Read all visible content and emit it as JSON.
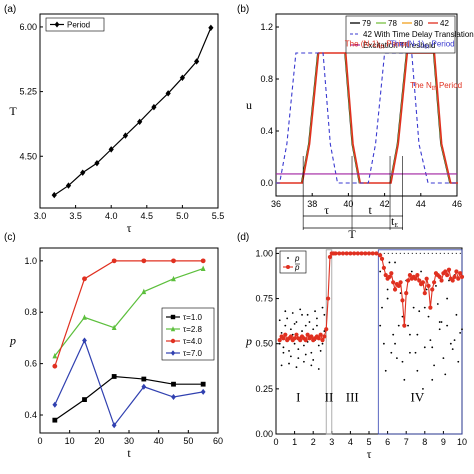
{
  "chart_data": [
    {
      "panel": "(a)",
      "type": "line",
      "xlabel": "τ",
      "ylabel": "T",
      "xlim": [
        3.0,
        5.5
      ],
      "ylim": [
        3.9,
        6.15
      ],
      "xticks": [
        "3.0",
        "3.5",
        "4.0",
        "4.5",
        "5.0",
        "5.5"
      ],
      "yticks": [
        "4.50",
        "5.25",
        "6.00"
      ],
      "legend": "top-left",
      "series": [
        {
          "name": "Period",
          "color": "#000000",
          "x": [
            3.2,
            3.4,
            3.6,
            3.8,
            4.0,
            4.2,
            4.4,
            4.6,
            4.8,
            5.0,
            5.2,
            5.4
          ],
          "y": [
            4.05,
            4.16,
            4.31,
            4.42,
            4.58,
            4.74,
            4.9,
            5.07,
            5.23,
            5.41,
            5.6,
            5.99
          ]
        }
      ]
    },
    {
      "panel": "(b)",
      "type": "line",
      "xlabel": "",
      "ylabel": "u",
      "xlim": [
        36,
        46
      ],
      "ylim": [
        -0.1,
        1.3
      ],
      "xticks": [
        "36",
        "38",
        "40",
        "42",
        "44",
        "46"
      ],
      "yticks": [
        "0.0",
        "0.4",
        "0.8",
        "1.2"
      ],
      "legend": "top-right",
      "series": [
        {
          "name": "79",
          "color": "#000000",
          "x": [
            36,
            37.4,
            37.8,
            38.3,
            39.8,
            40.2,
            40.6,
            42.3,
            42.7,
            43.2,
            44.7,
            45.1,
            45.6,
            46
          ],
          "y": [
            0.0,
            0.0,
            0.3,
            1.0,
            1.0,
            0.3,
            0.0,
            0.0,
            0.3,
            1.0,
            1.0,
            0.3,
            0.0,
            0.0
          ]
        },
        {
          "name": "78",
          "color": "#7ac143",
          "x": [
            36,
            37.4,
            37.8,
            38.3,
            39.8,
            40.2,
            40.6,
            42.3,
            42.7,
            43.2,
            44.7,
            45.1,
            45.6,
            46
          ],
          "y": [
            0.0,
            0.0,
            0.3,
            1.0,
            1.0,
            0.3,
            0.0,
            0.0,
            0.3,
            1.0,
            1.0,
            0.3,
            0.0,
            0.0
          ]
        },
        {
          "name": "80",
          "color": "#f0a020",
          "x": [
            36,
            37.4,
            37.8,
            38.3,
            39.8,
            40.2,
            40.6,
            42.3,
            42.7,
            43.2,
            44.7,
            45.1,
            45.6,
            46
          ],
          "y": [
            0.0,
            0.0,
            0.3,
            1.0,
            1.0,
            0.3,
            0.0,
            0.0,
            0.3,
            1.0,
            1.0,
            0.3,
            0.0,
            0.0
          ]
        },
        {
          "name": "42",
          "color": "#e03020",
          "x": [
            36,
            37.4,
            37.8,
            38.3,
            39.8,
            40.2,
            40.6,
            42.3,
            42.7,
            43.2,
            44.7,
            45.1,
            45.6,
            46
          ],
          "y": [
            0.0,
            0.0,
            0.3,
            1.0,
            1.0,
            0.3,
            0.0,
            0.0,
            0.3,
            1.0,
            1.0,
            0.3,
            0.0,
            0.0
          ]
        },
        {
          "name": "42 With Time Delay Translation",
          "color": "#3a3ad0",
          "dashed": true,
          "x": [
            36,
            36.2,
            36.6,
            37.1,
            38.6,
            39.0,
            39.4,
            41.1,
            41.5,
            42.0,
            43.5,
            43.9,
            44.4,
            46
          ],
          "y": [
            0.0,
            0.0,
            0.3,
            1.0,
            1.0,
            0.3,
            0.0,
            0.0,
            0.3,
            1.0,
            1.0,
            0.3,
            0.0,
            0.0
          ]
        },
        {
          "name": "Excitation Threshold",
          "color": "#a020a0",
          "x": [
            36,
            46
          ],
          "y": [
            0.07,
            0.07
          ]
        }
      ],
      "annotations": [
        {
          "text": "The (N-1)",
          "sub": "th",
          "tail": " Period",
          "color": "#e03020",
          "x": 39.8,
          "y": 1.05
        },
        {
          "text": "The (N-1)",
          "sub": "th",
          "tail": " Period",
          "color": "#3a3ad0",
          "x": 42.3,
          "y": 1.05
        },
        {
          "text": "The N",
          "sub": "th",
          "tail": " Period",
          "color": "#e03020",
          "x": 43.4,
          "y": 0.73
        }
      ],
      "markers": [
        "τ",
        "t",
        "t",
        "T"
      ],
      "marker_sub": "E"
    },
    {
      "panel": "(c)",
      "type": "line",
      "xlabel": "t",
      "ylabel": "p",
      "xlim": [
        0,
        60
      ],
      "ylim": [
        0.33,
        1.05
      ],
      "xticks": [
        "0",
        "10",
        "20",
        "30",
        "40",
        "50",
        "60"
      ],
      "yticks": [
        "0.4",
        "0.6",
        "0.8",
        "1.0"
      ],
      "legend": "right",
      "series": [
        {
          "name": "τ=1.0",
          "color": "#000000",
          "marker": "square",
          "x": [
            5,
            15,
            25,
            35,
            45,
            55
          ],
          "y": [
            0.38,
            0.46,
            0.55,
            0.54,
            0.52,
            0.52
          ]
        },
        {
          "name": "τ=2.8",
          "color": "#5cbf3c",
          "marker": "triangle",
          "x": [
            5,
            15,
            25,
            35,
            45,
            55
          ],
          "y": [
            0.63,
            0.78,
            0.74,
            0.88,
            0.93,
            0.97
          ]
        },
        {
          "name": "τ=4.0",
          "color": "#e03020",
          "marker": "circle",
          "x": [
            5,
            15,
            25,
            35,
            45,
            55
          ],
          "y": [
            0.59,
            0.93,
            1.0,
            1.0,
            1.0,
            1.0
          ]
        },
        {
          "name": "τ=7.0",
          "color": "#3040b0",
          "marker": "diamond",
          "x": [
            5,
            15,
            25,
            35,
            45,
            55
          ],
          "y": [
            0.44,
            0.69,
            0.36,
            0.51,
            0.47,
            0.49
          ]
        }
      ]
    },
    {
      "panel": "(d)",
      "type": "scatter",
      "xlabel": "τ",
      "ylabel": "p",
      "xlim": [
        0,
        10
      ],
      "ylim": [
        0,
        1.03
      ],
      "xticks": [
        "0",
        "1",
        "2",
        "3",
        "4",
        "5",
        "6",
        "7",
        "8",
        "9",
        "10"
      ],
      "yticks": [
        "0.00",
        "0.25",
        "0.50",
        "0.75",
        "1.00"
      ],
      "legend": "top-left",
      "regions": [
        {
          "label": "I",
          "x": 1.2
        },
        {
          "label": "II",
          "x": 2.85
        },
        {
          "label": "III",
          "x": 4.1
        },
        {
          "label": "IV",
          "x": 7.6
        }
      ],
      "region_boxes": [
        [
          2.7,
          3.0
        ],
        [
          5.5,
          10
        ]
      ],
      "series": [
        {
          "name": "p",
          "italic": true,
          "color": "#000000",
          "marker": "dot",
          "x": [
            0.2,
            0.3,
            0.4,
            0.5,
            0.6,
            0.7,
            0.8,
            0.9,
            1.0,
            1.1,
            1.2,
            1.3,
            1.4,
            1.5,
            1.6,
            1.7,
            1.8,
            1.9,
            2.0,
            2.1,
            2.2,
            2.3,
            2.4,
            2.5,
            2.6,
            0.2,
            0.4,
            0.6,
            0.8,
            1.0,
            1.2,
            1.4,
            1.6,
            1.8,
            2.0,
            2.2,
            2.4,
            2.6,
            0.3,
            0.7,
            1.1,
            1.5,
            1.9,
            2.3,
            0.5,
            0.9,
            1.3,
            1.7,
            2.1,
            2.5,
            5.6,
            5.8,
            6.0,
            6.2,
            6.4,
            6.6,
            6.8,
            7.0,
            7.2,
            7.4,
            7.6,
            7.8,
            8.0,
            8.2,
            8.4,
            8.6,
            8.8,
            9.0,
            9.2,
            9.4,
            9.6,
            9.8,
            5.7,
            5.9,
            6.1,
            6.3,
            6.5,
            6.7,
            6.9,
            7.1,
            7.3,
            7.5,
            7.7,
            7.9,
            8.1,
            8.3,
            8.5,
            8.7,
            8.9,
            9.1,
            9.3,
            9.5,
            9.7,
            9.9,
            5.6,
            6.0,
            6.4,
            6.8,
            7.2,
            7.6,
            8.0,
            8.4,
            8.8,
            9.2,
            9.6,
            10.0
          ],
          "y": [
            0.5,
            0.56,
            0.48,
            0.6,
            0.52,
            0.46,
            0.58,
            0.55,
            0.5,
            0.62,
            0.47,
            0.53,
            0.57,
            0.49,
            0.6,
            0.51,
            0.54,
            0.45,
            0.58,
            0.52,
            0.6,
            0.49,
            0.55,
            0.5,
            0.57,
            0.63,
            0.45,
            0.64,
            0.43,
            0.61,
            0.42,
            0.66,
            0.44,
            0.62,
            0.41,
            0.64,
            0.46,
            0.66,
            0.38,
            0.39,
            0.37,
            0.4,
            0.38,
            0.36,
            0.68,
            0.67,
            0.69,
            0.66,
            0.68,
            0.7,
            0.9,
            0.5,
            0.8,
            0.45,
            0.95,
            0.6,
            0.4,
            0.85,
            0.55,
            0.7,
            0.35,
            0.9,
            0.48,
            0.65,
            0.3,
            0.82,
            0.58,
            0.42,
            0.75,
            0.5,
            0.88,
            0.4,
            0.7,
            0.35,
            0.95,
            0.55,
            0.42,
            0.78,
            0.3,
            0.6,
            0.9,
            0.45,
            0.68,
            0.25,
            0.8,
            0.52,
            0.38,
            0.72,
            0.62,
            0.33,
            0.85,
            0.47,
            0.66,
            0.56,
            0.6,
            0.75,
            0.5,
            0.65,
            0.45,
            0.55,
            0.7,
            0.48,
            0.62,
            0.6,
            0.52,
            0.58
          ]
        },
        {
          "name": "p",
          "italic": true,
          "bar": true,
          "color": "#e03020",
          "marker": "circle",
          "x": [
            0.2,
            0.3,
            0.4,
            0.5,
            0.6,
            0.7,
            0.8,
            0.9,
            1.0,
            1.1,
            1.2,
            1.3,
            1.4,
            1.5,
            1.6,
            1.7,
            1.8,
            1.9,
            2.0,
            2.1,
            2.2,
            2.3,
            2.4,
            2.5,
            2.6,
            2.7,
            2.8,
            2.9,
            3.0,
            3.1,
            3.2,
            3.4,
            3.6,
            3.8,
            4.0,
            4.2,
            4.4,
            4.6,
            4.8,
            5.0,
            5.2,
            5.4,
            5.6,
            5.7,
            5.8,
            5.9,
            6.0,
            6.1,
            6.2,
            6.3,
            6.4,
            6.5,
            6.6,
            6.7,
            6.8,
            6.9,
            7.0,
            7.1,
            7.2,
            7.3,
            7.4,
            7.5,
            7.6,
            7.7,
            7.8,
            7.9,
            8.0,
            8.1,
            8.2,
            8.3,
            8.4,
            8.5,
            8.6,
            8.7,
            8.8,
            8.9,
            9.0,
            9.1,
            9.2,
            9.3,
            9.4,
            9.5,
            9.6,
            9.7,
            9.8,
            9.9,
            10.0
          ],
          "y": [
            0.52,
            0.54,
            0.53,
            0.55,
            0.52,
            0.53,
            0.54,
            0.52,
            0.53,
            0.55,
            0.53,
            0.52,
            0.54,
            0.53,
            0.52,
            0.55,
            0.53,
            0.54,
            0.52,
            0.53,
            0.54,
            0.53,
            0.55,
            0.52,
            0.54,
            0.58,
            0.75,
            0.98,
            1.0,
            1.0,
            1.0,
            1.0,
            1.0,
            1.0,
            1.0,
            1.0,
            1.0,
            1.0,
            1.0,
            1.0,
            1.0,
            1.0,
            0.99,
            0.97,
            0.92,
            0.88,
            0.86,
            0.87,
            0.89,
            0.84,
            0.8,
            0.83,
            0.82,
            0.84,
            0.74,
            0.6,
            0.78,
            0.85,
            0.88,
            0.86,
            0.87,
            0.86,
            0.88,
            0.85,
            0.83,
            0.84,
            0.78,
            0.86,
            0.82,
            0.7,
            0.8,
            0.84,
            0.89,
            0.88,
            0.87,
            0.85,
            0.89,
            0.9,
            0.88,
            0.91,
            0.86,
            0.85,
            0.87,
            0.9,
            0.86,
            0.89,
            0.87
          ]
        },
        {
          "name": "",
          "color": "#000000",
          "marker": "dotted-line",
          "x": [
            3.0,
            10.0
          ],
          "y": [
            1.0,
            1.0
          ]
        }
      ]
    }
  ]
}
